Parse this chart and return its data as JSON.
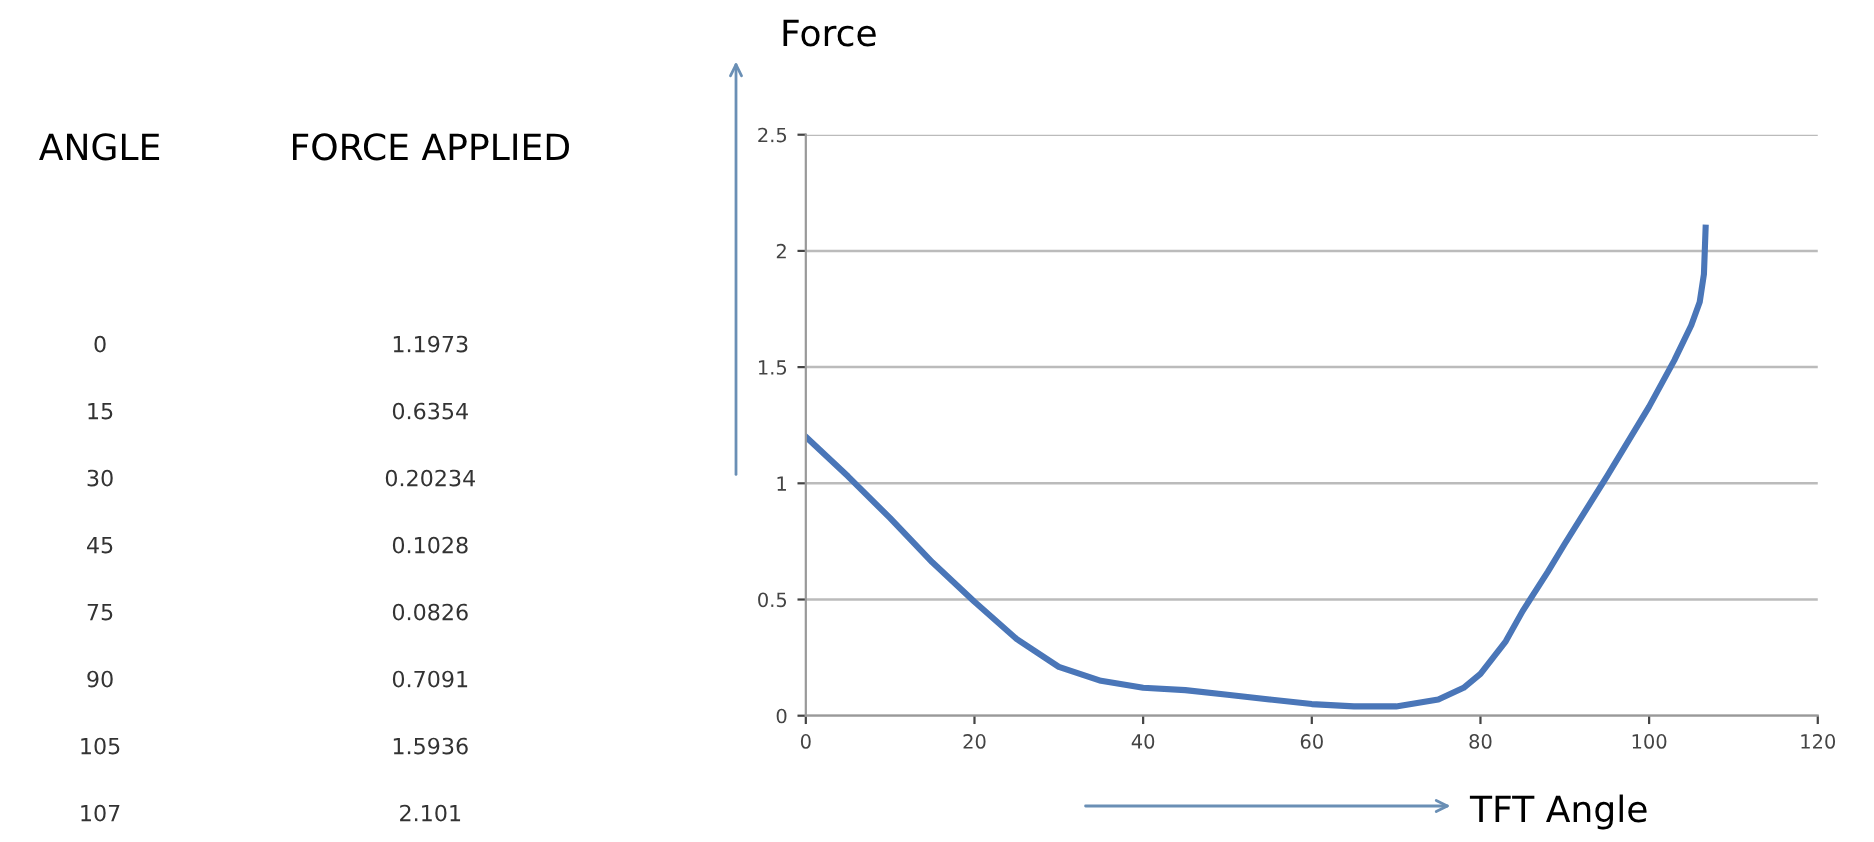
{
  "chart_data": [
    {
      "type": "other",
      "annotations": [
        "ANGLE",
        "FORCE APPLIED",
        "0",
        "1.1973",
        "15",
        "0.6354",
        "30",
        "0.20234",
        "45",
        "0.1028",
        "75",
        "0.0826",
        "90",
        "0.7091",
        "105",
        "1.5936",
        "107",
        "2.101"
      ]
    },
    {
      "type": "line",
      "xlabel": "TFT Angle",
      "ylabel": "Force",
      "x": [
        0,
        5,
        10,
        15,
        20,
        25,
        30,
        35,
        40,
        45,
        50,
        55,
        60,
        65,
        70,
        75,
        78,
        80,
        83,
        85,
        88,
        90,
        95,
        100,
        103,
        105,
        106,
        106.5,
        106.7
      ],
      "series": [
        {
          "color": "#4a76b8",
          "values": [
            1.2,
            1.03,
            0.85,
            0.66,
            0.49,
            0.33,
            0.21,
            0.15,
            0.12,
            0.11,
            0.09,
            0.07,
            0.05,
            0.04,
            0.04,
            0.07,
            0.12,
            0.18,
            0.32,
            0.45,
            0.62,
            0.74,
            1.03,
            1.33,
            1.53,
            1.68,
            1.78,
            1.9,
            2.1
          ]
        }
      ],
      "xlim": [
        0,
        120
      ],
      "xticks": [
        0,
        20,
        40,
        60,
        80,
        100,
        120
      ],
      "ylim": [
        0,
        2.5
      ],
      "yticks": [
        0,
        0.5,
        1,
        1.5,
        2,
        2.5
      ],
      "grid": "y",
      "marker": "none",
      "line_style": "solid"
    }
  ]
}
